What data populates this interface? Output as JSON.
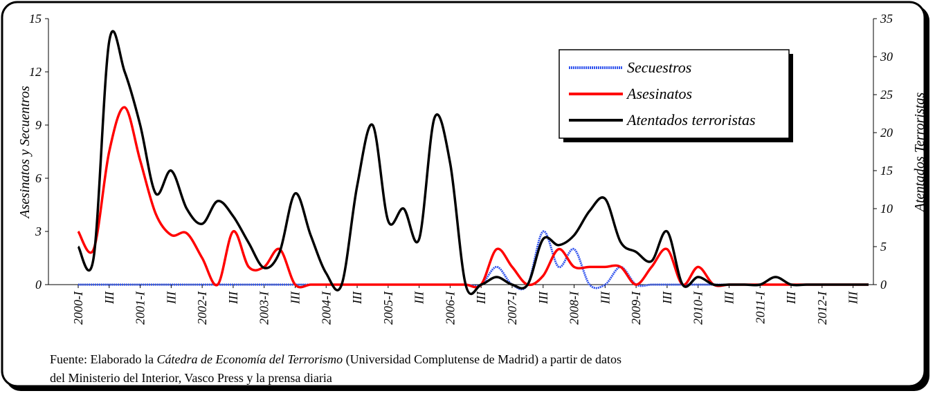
{
  "chart_data": {
    "type": "line",
    "categories": [
      "2000-I",
      null,
      "III",
      null,
      "2001-I",
      null,
      "III",
      null,
      "2002-I",
      null,
      "III",
      null,
      "2003-I",
      null,
      "III",
      null,
      "2004-I",
      null,
      "III",
      null,
      "2005-I",
      null,
      "III",
      null,
      "2006-I",
      null,
      "III",
      null,
      "2007-I",
      null,
      "III",
      null,
      "2008-I",
      null,
      "III",
      null,
      "2009-I",
      null,
      "III",
      null,
      "2010-I",
      null,
      "III",
      null,
      "2011-I",
      null,
      "III",
      null,
      "2012-I",
      null,
      "III",
      null
    ],
    "series": [
      {
        "name": "Secuestros",
        "color": "#3355ee",
        "values": [
          0,
          0,
          0,
          0,
          0,
          0,
          0,
          0,
          0,
          0,
          0,
          0,
          0,
          0,
          0,
          0,
          0,
          0,
          0,
          0,
          0,
          0,
          0,
          0,
          0,
          0,
          0,
          1,
          0,
          0,
          3,
          1,
          2,
          0,
          0,
          1,
          0,
          0,
          0,
          0,
          0,
          0,
          0,
          0,
          0,
          0,
          0,
          0,
          0,
          0,
          0,
          0
        ]
      },
      {
        "name": "Asesinatos",
        "color": "#ff0000",
        "values": [
          3,
          2,
          7.5,
          10,
          7,
          4,
          2.8,
          2.9,
          1.5,
          0,
          3,
          1,
          1,
          2,
          0,
          0,
          0,
          0,
          0,
          0,
          0,
          0,
          0,
          0,
          0,
          0,
          0,
          2,
          1,
          0,
          0.5,
          2,
          1,
          1,
          1,
          1,
          0,
          1,
          2,
          0,
          1,
          0,
          0,
          0,
          0,
          0,
          0,
          0,
          0,
          0,
          0,
          0
        ]
      },
      {
        "name": "Atentados terroristas",
        "color": "#000000",
        "axis": "y2",
        "values": [
          5,
          3.6,
          32,
          28,
          21,
          12,
          15,
          10,
          8,
          11,
          9,
          5.5,
          2.2,
          4.3,
          12,
          6.5,
          1.5,
          0,
          13,
          21,
          8.4,
          10,
          6,
          22,
          16,
          0,
          0,
          1,
          0,
          0,
          6,
          5.2,
          6.5,
          9.7,
          11.3,
          5.6,
          4.3,
          3.1,
          7,
          0,
          1,
          0,
          0,
          0,
          0,
          1,
          0,
          0,
          0,
          0,
          0,
          0
        ]
      }
    ],
    "ylabel": "Asesinatos y Secuentros",
    "y2label": "Atentados Terroristas",
    "ylim": [
      0,
      15
    ],
    "yticks": [
      0,
      3,
      6,
      9,
      12,
      15
    ],
    "y2lim": [
      0,
      35
    ],
    "y2ticks": [
      0,
      5,
      10,
      15,
      20,
      25,
      30,
      35
    ],
    "legend": "upper right",
    "source": [
      "Fuente: Elaborado la ",
      "Cátedra de Economía del Terrorismo",
      " (Universidad Complutense de Madrid) a partir de datos",
      "del Ministerio del Interior, Vasco Press y la prensa diaria"
    ]
  }
}
